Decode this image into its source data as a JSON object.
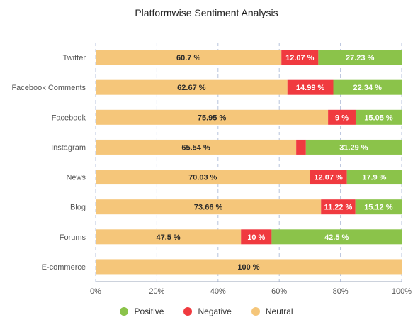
{
  "chart_data": {
    "type": "bar",
    "orientation": "horizontal",
    "stacked": true,
    "title": "Platformwise Sentiment Analysis",
    "categories": [
      "Twitter",
      "Facebook Comments",
      "Facebook",
      "Instagram",
      "News",
      "Blog",
      "Forums",
      "E-commerce"
    ],
    "series": [
      {
        "name": "Neutral",
        "color": "#f5c67a",
        "values": [
          60.7,
          62.67,
          75.95,
          65.54,
          70.03,
          73.66,
          47.5,
          100
        ],
        "labels": [
          "60.7 %",
          "62.67 %",
          "75.95 %",
          "65.54 %",
          "70.03 %",
          "73.66 %",
          "47.5 %",
          "100 %"
        ]
      },
      {
        "name": "Negative",
        "color": "#f03a3f",
        "values": [
          12.07,
          14.99,
          9.0,
          3.17,
          12.07,
          11.22,
          10,
          0
        ],
        "labels": [
          "12.07 %",
          "14.99 %",
          "9 %",
          "",
          "12.07 %",
          "11.22 %",
          "10 %",
          ""
        ]
      },
      {
        "name": "Positive",
        "color": "#8bc34a",
        "values": [
          27.23,
          22.34,
          15.05,
          31.29,
          17.9,
          15.12,
          42.5,
          0
        ],
        "labels": [
          "27.23 %",
          "22.34 %",
          "15.05 %",
          "31.29 %",
          "17.9 %",
          "15.12 %",
          "42.5 %",
          ""
        ]
      }
    ],
    "xlim": [
      0,
      100
    ],
    "xticks": [
      "0%",
      "20%",
      "40%",
      "60%",
      "80%",
      "100%"
    ],
    "grid": "vertical dashed",
    "legend_placement": "bottom",
    "legend": [
      "Positive",
      "Negative",
      "Neutral"
    ]
  },
  "legend_items": [
    {
      "label": "Positive",
      "color": "#8bc34a"
    },
    {
      "label": "Negative",
      "color": "#f03a3f"
    },
    {
      "label": "Neutral",
      "color": "#f5c67a"
    }
  ]
}
